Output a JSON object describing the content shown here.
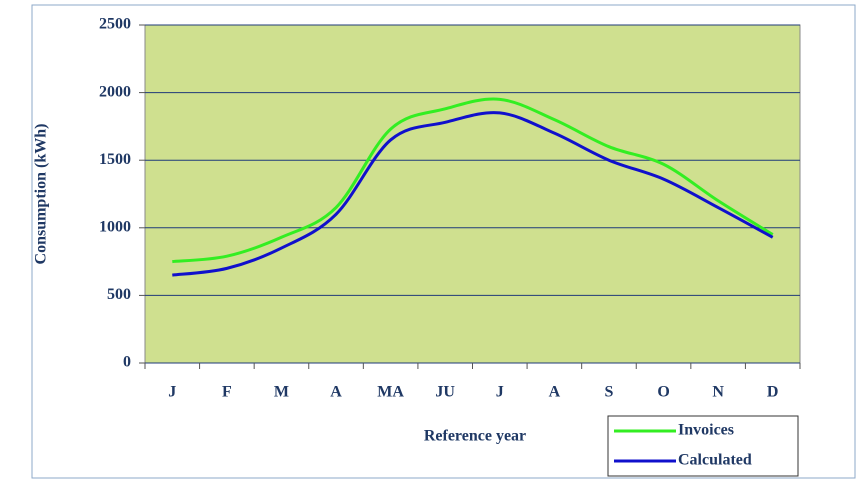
{
  "chart_data": {
    "type": "line",
    "x_label": "Reference year",
    "y_label": "Consumption (kWh)",
    "categories": [
      "J",
      "F",
      "M",
      "A",
      "MA",
      "JU",
      "J",
      "A",
      "S",
      "O",
      "N",
      "D"
    ],
    "series": [
      {
        "name": "Invoices",
        "color": "#33ee22",
        "values": [
          750,
          790,
          930,
          1150,
          1730,
          1880,
          1950,
          1800,
          1600,
          1470,
          1200,
          950
        ]
      },
      {
        "name": "Calculated",
        "color": "#1010cc",
        "values": [
          650,
          700,
          850,
          1100,
          1650,
          1780,
          1850,
          1700,
          1500,
          1360,
          1150,
          930
        ]
      }
    ],
    "ylim": [
      0,
      2500
    ],
    "yticks": [
      0,
      500,
      1000,
      1500,
      2000,
      2500
    ],
    "grid": true
  }
}
